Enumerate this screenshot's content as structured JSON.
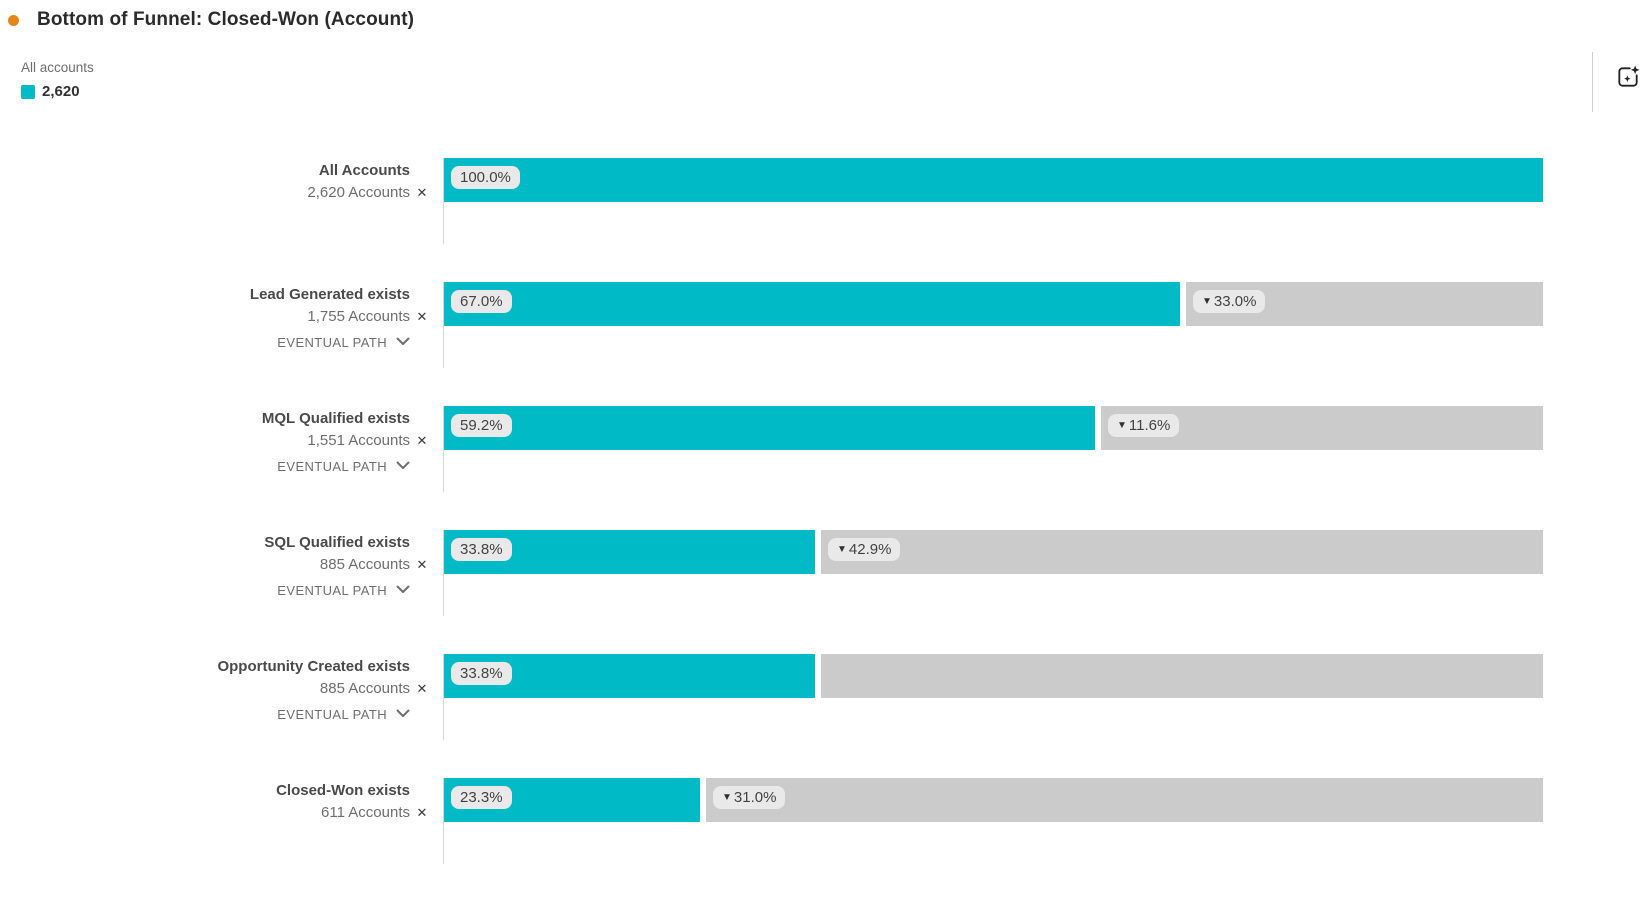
{
  "header": {
    "title": "Bottom of Funnel: Closed-Won (Account)"
  },
  "legend": {
    "series_label": "All accounts",
    "series_value": "2,620"
  },
  "icons": {
    "close": "✕",
    "chevron_down": "chevron-down-icon",
    "ai_insights": "ai-insights-sparkle-icon"
  },
  "colors": {
    "accent_teal": "#00bbc6",
    "fallout_gray": "#cbcbcb",
    "bullet_orange": "#e68619"
  },
  "chart_data": {
    "type": "funnel",
    "title": "Bottom of Funnel: Closed-Won (Account)",
    "unit": "Accounts",
    "total_accounts": 2620,
    "legend": {
      "label": "All accounts",
      "value": 2620
    },
    "eventual_path_label": "EVENTUAL PATH",
    "fallout_marker": "▼",
    "axis_range_pct": [
      0,
      100
    ],
    "steps": [
      {
        "label": "All Accounts",
        "count": 2620,
        "count_label": "2,620 Accounts",
        "pct": 100.0,
        "pct_label": "100.0%",
        "fallout_pct": null,
        "fallout_label": null,
        "eventual_path": false
      },
      {
        "label": "Lead Generated exists",
        "count": 1755,
        "count_label": "1,755 Accounts",
        "pct": 67.0,
        "pct_label": "67.0%",
        "fallout_pct": 33.0,
        "fallout_label": "33.0%",
        "eventual_path": true
      },
      {
        "label": "MQL Qualified exists",
        "count": 1551,
        "count_label": "1,551 Accounts",
        "pct": 59.2,
        "pct_label": "59.2%",
        "fallout_pct": 11.6,
        "fallout_label": "11.6%",
        "eventual_path": true
      },
      {
        "label": "SQL Qualified exists",
        "count": 885,
        "count_label": "885 Accounts",
        "pct": 33.8,
        "pct_label": "33.8%",
        "fallout_pct": 42.9,
        "fallout_label": "42.9%",
        "eventual_path": true
      },
      {
        "label": "Opportunity Created exists",
        "count": 885,
        "count_label": "885 Accounts",
        "pct": 33.8,
        "pct_label": "33.8%",
        "fallout_pct": null,
        "fallout_label": null,
        "eventual_path": true
      },
      {
        "label": "Closed-Won exists",
        "count": 611,
        "count_label": "611 Accounts",
        "pct": 23.3,
        "pct_label": "23.3%",
        "fallout_pct": 31.0,
        "fallout_label": "31.0%",
        "eventual_path": false
      }
    ]
  }
}
